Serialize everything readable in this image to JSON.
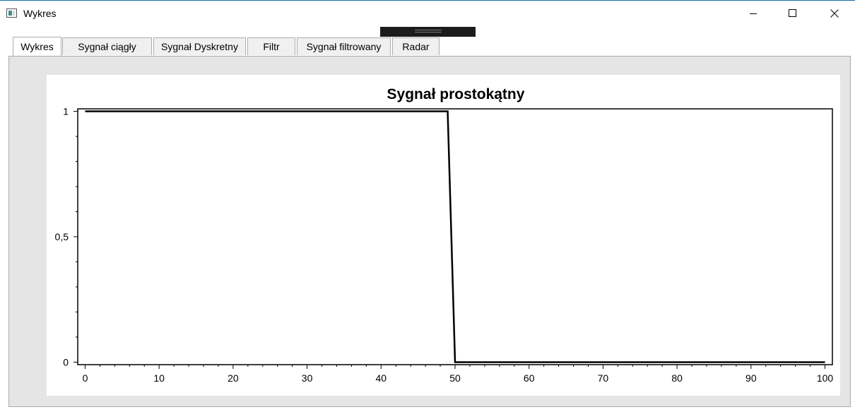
{
  "window": {
    "title": "Wykres",
    "icon": "app-window-icon",
    "controls": [
      "minimize-icon",
      "maximize-icon",
      "close-icon"
    ]
  },
  "tabs": [
    {
      "label": "Wykres",
      "active": true
    },
    {
      "label": "Sygnał ciągły",
      "active": false
    },
    {
      "label": "Sygnał Dyskretny",
      "active": false
    },
    {
      "label": "Filtr",
      "active": false
    },
    {
      "label": "Sygnał filtrowany",
      "active": false
    },
    {
      "label": "Radar",
      "active": false
    }
  ],
  "chart_data": {
    "type": "line",
    "title": "Sygnał prostokątny",
    "xlabel": "",
    "ylabel": "",
    "xlim": [
      -1,
      101
    ],
    "ylim": [
      -0.01,
      1.01
    ],
    "x_ticks": [
      0,
      10,
      20,
      30,
      40,
      50,
      60,
      70,
      80,
      90,
      100
    ],
    "x_tick_labels": [
      "0",
      "10",
      "20",
      "30",
      "40",
      "50",
      "60",
      "70",
      "80",
      "90",
      "100"
    ],
    "y_ticks": [
      0,
      0.5,
      1
    ],
    "y_tick_labels": [
      "0",
      "0,5",
      "1"
    ],
    "grid": false,
    "series": [
      {
        "color": "#000000",
        "x": [
          0,
          49,
          50,
          100
        ],
        "y": [
          1,
          1,
          0,
          0
        ]
      }
    ]
  }
}
